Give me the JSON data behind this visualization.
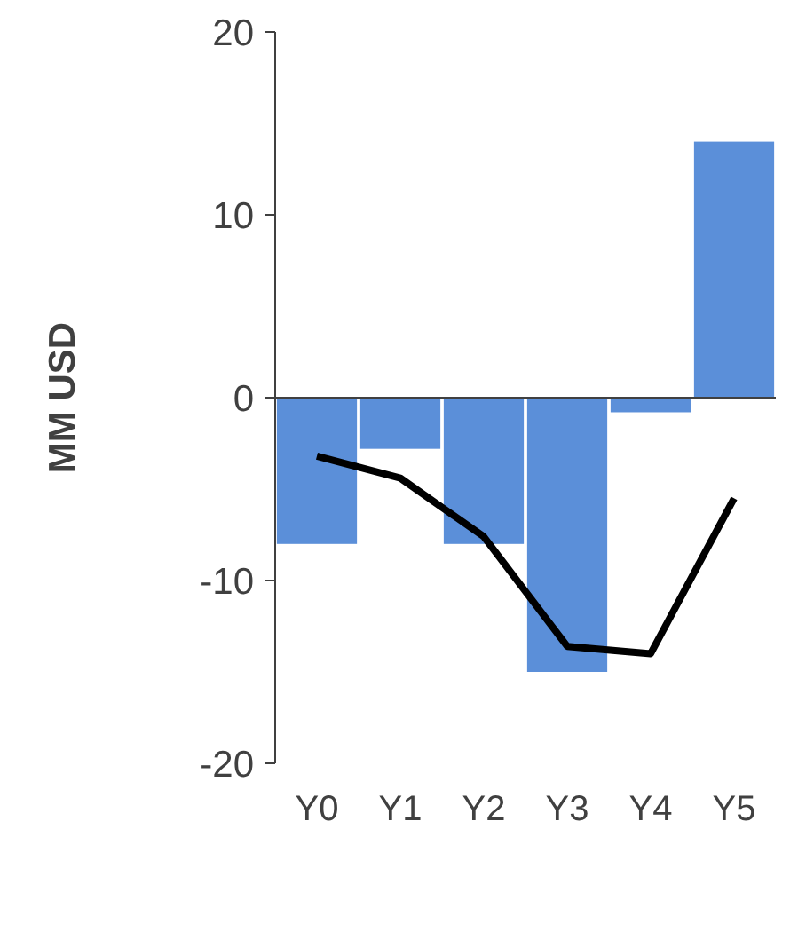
{
  "chart_data": {
    "type": "bar",
    "ylabel": "MM USD",
    "categories": [
      "Y0",
      "Y1",
      "Y2",
      "Y3",
      "Y4",
      "Y5"
    ],
    "ylim": [
      -20,
      20
    ],
    "yticks": [
      -20,
      -10,
      0,
      10,
      20
    ],
    "series": [
      {
        "color": "#5b8fd9",
        "values": [
          -8,
          -2.8,
          -8,
          -15,
          -0.8,
          14
        ]
      },
      {
        "type": "line",
        "color": "#000000",
        "values": [
          -3.2,
          -4.4,
          -7.6,
          -13.6,
          -14.0,
          -5.5
        ],
        "marker": "none"
      }
    ]
  }
}
